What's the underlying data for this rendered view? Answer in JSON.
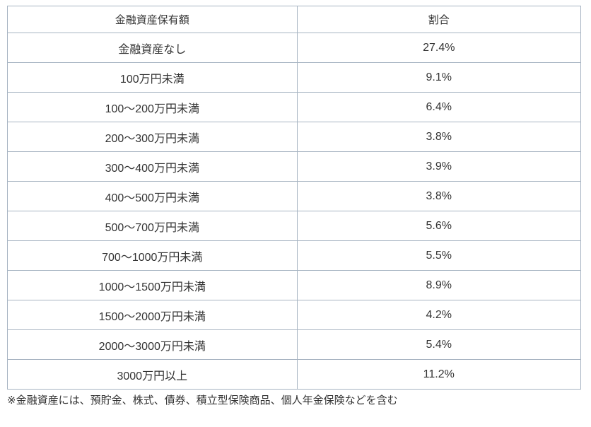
{
  "colors": {
    "border": "#a7b4c2",
    "text": "#333333",
    "background": "#ffffff"
  },
  "footnote": "※金融資産には、預貯金、株式、債券、積立型保険商品、個人年金保険などを含む",
  "chart_data": {
    "type": "table",
    "title": "",
    "columns": [
      "金融資産保有額",
      "割合"
    ],
    "rows": [
      {
        "label": "金融資産なし",
        "value": "27.4%"
      },
      {
        "label": "100万円未満",
        "value": "9.1%"
      },
      {
        "label": "100〜200万円未満",
        "value": "6.4%"
      },
      {
        "label": "200〜300万円未満",
        "value": "3.8%"
      },
      {
        "label": "300〜400万円未満",
        "value": "3.9%"
      },
      {
        "label": "400〜500万円未満",
        "value": "3.8%"
      },
      {
        "label": "500〜700万円未満",
        "value": "5.6%"
      },
      {
        "label": "700〜1000万円未満",
        "value": "5.5%"
      },
      {
        "label": "1000〜1500万円未満",
        "value": "8.9%"
      },
      {
        "label": "1500〜2000万円未満",
        "value": "4.2%"
      },
      {
        "label": "2000〜3000万円未満",
        "value": "5.4%"
      },
      {
        "label": "3000万円以上",
        "value": "11.2%"
      }
    ]
  }
}
